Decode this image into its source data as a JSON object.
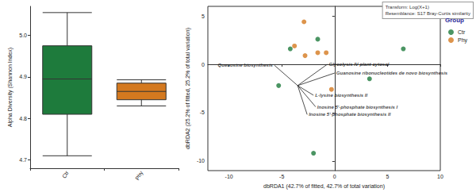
{
  "chart_data": [
    {
      "type": "boxplot",
      "y_label": "Alpha Diversity (Shannon Index)",
      "categories": [
        "Ctr",
        "Phy"
      ],
      "values": [
        [
          4.71,
          4.81,
          4.895,
          4.975,
          5.055
        ],
        [
          4.83,
          4.845,
          4.865,
          4.885,
          4.893
        ]
      ],
      "colors": [
        "#1e7b3c",
        "#d4791f"
      ],
      "ylim": [
        4.68,
        5.07
      ],
      "yticks": [
        4.7,
        4.8,
        4.9,
        {
          "value": 5,
          "label": "5.0"
        }
      ],
      "grid": false
    },
    {
      "type": "scatter",
      "x_label": "dbRDA1 (42.7% of fitted, 42.7% of total variation)",
      "y_label": "dbRDA2 (25.2% of fitted, 25.2% of total variation)",
      "annotations": [
        "Transform: Log(X+1)",
        "Resemblance: S17 Bray-Curtis similarity"
      ],
      "legend_title": "Group",
      "legend": "right",
      "marker": "circle",
      "series": [
        {
          "name": "Ctr",
          "color": "#1e7b3c",
          "x": [
            -4.2,
            -1.6,
            6.5,
            3.3,
            -5.3,
            -2.0
          ],
          "values": [
            1.6,
            2.6,
            1.6,
            -1.5,
            -2.2,
            -9.2
          ]
        },
        {
          "name": "Phy",
          "color": "#d4791f",
          "x": [
            -2.9,
            -3.8,
            -2.8,
            -1.6,
            -0.8,
            -0.3
          ],
          "values": [
            4.4,
            1.9,
            0.9,
            1.2,
            1.2,
            -2.6
          ]
        }
      ],
      "vectors": [
        {
          "label": "Queuosine biosynthesis",
          "x0": -3.5,
          "y0": -2.2,
          "x1": -5.7,
          "y1": -0.1
        },
        {
          "label": "Glycolysis IV plant cytosol",
          "x0": -3.5,
          "y0": -2.2,
          "x1": -0.7,
          "y1": 0.0
        },
        {
          "label": "Guanosine ribonucleotides de novo biosynthesis",
          "x0": -3.5,
          "y0": -2.2,
          "x1": 0.0,
          "y1": -0.9
        },
        {
          "label": "L-lysine biosynthesis II",
          "x0": -3.5,
          "y0": -2.2,
          "x1": -2.0,
          "y1": -3.2
        },
        {
          "label": "Inosine 5'-phosphate biosynthesis I",
          "x0": -3.5,
          "y0": -2.2,
          "x1": -1.8,
          "y1": -4.4
        },
        {
          "label": "Inosine 5'-phosphate biosynthesis II",
          "x0": -3.5,
          "y0": -2.2,
          "x1": -2.6,
          "y1": -5.2
        }
      ],
      "xlim": [
        -12,
        10
      ],
      "xticks": [
        -10,
        -5,
        0,
        5,
        10
      ],
      "ylim": [
        -11,
        6
      ],
      "yticks": [
        -10,
        -5,
        0,
        5
      ],
      "grid": false
    }
  ]
}
